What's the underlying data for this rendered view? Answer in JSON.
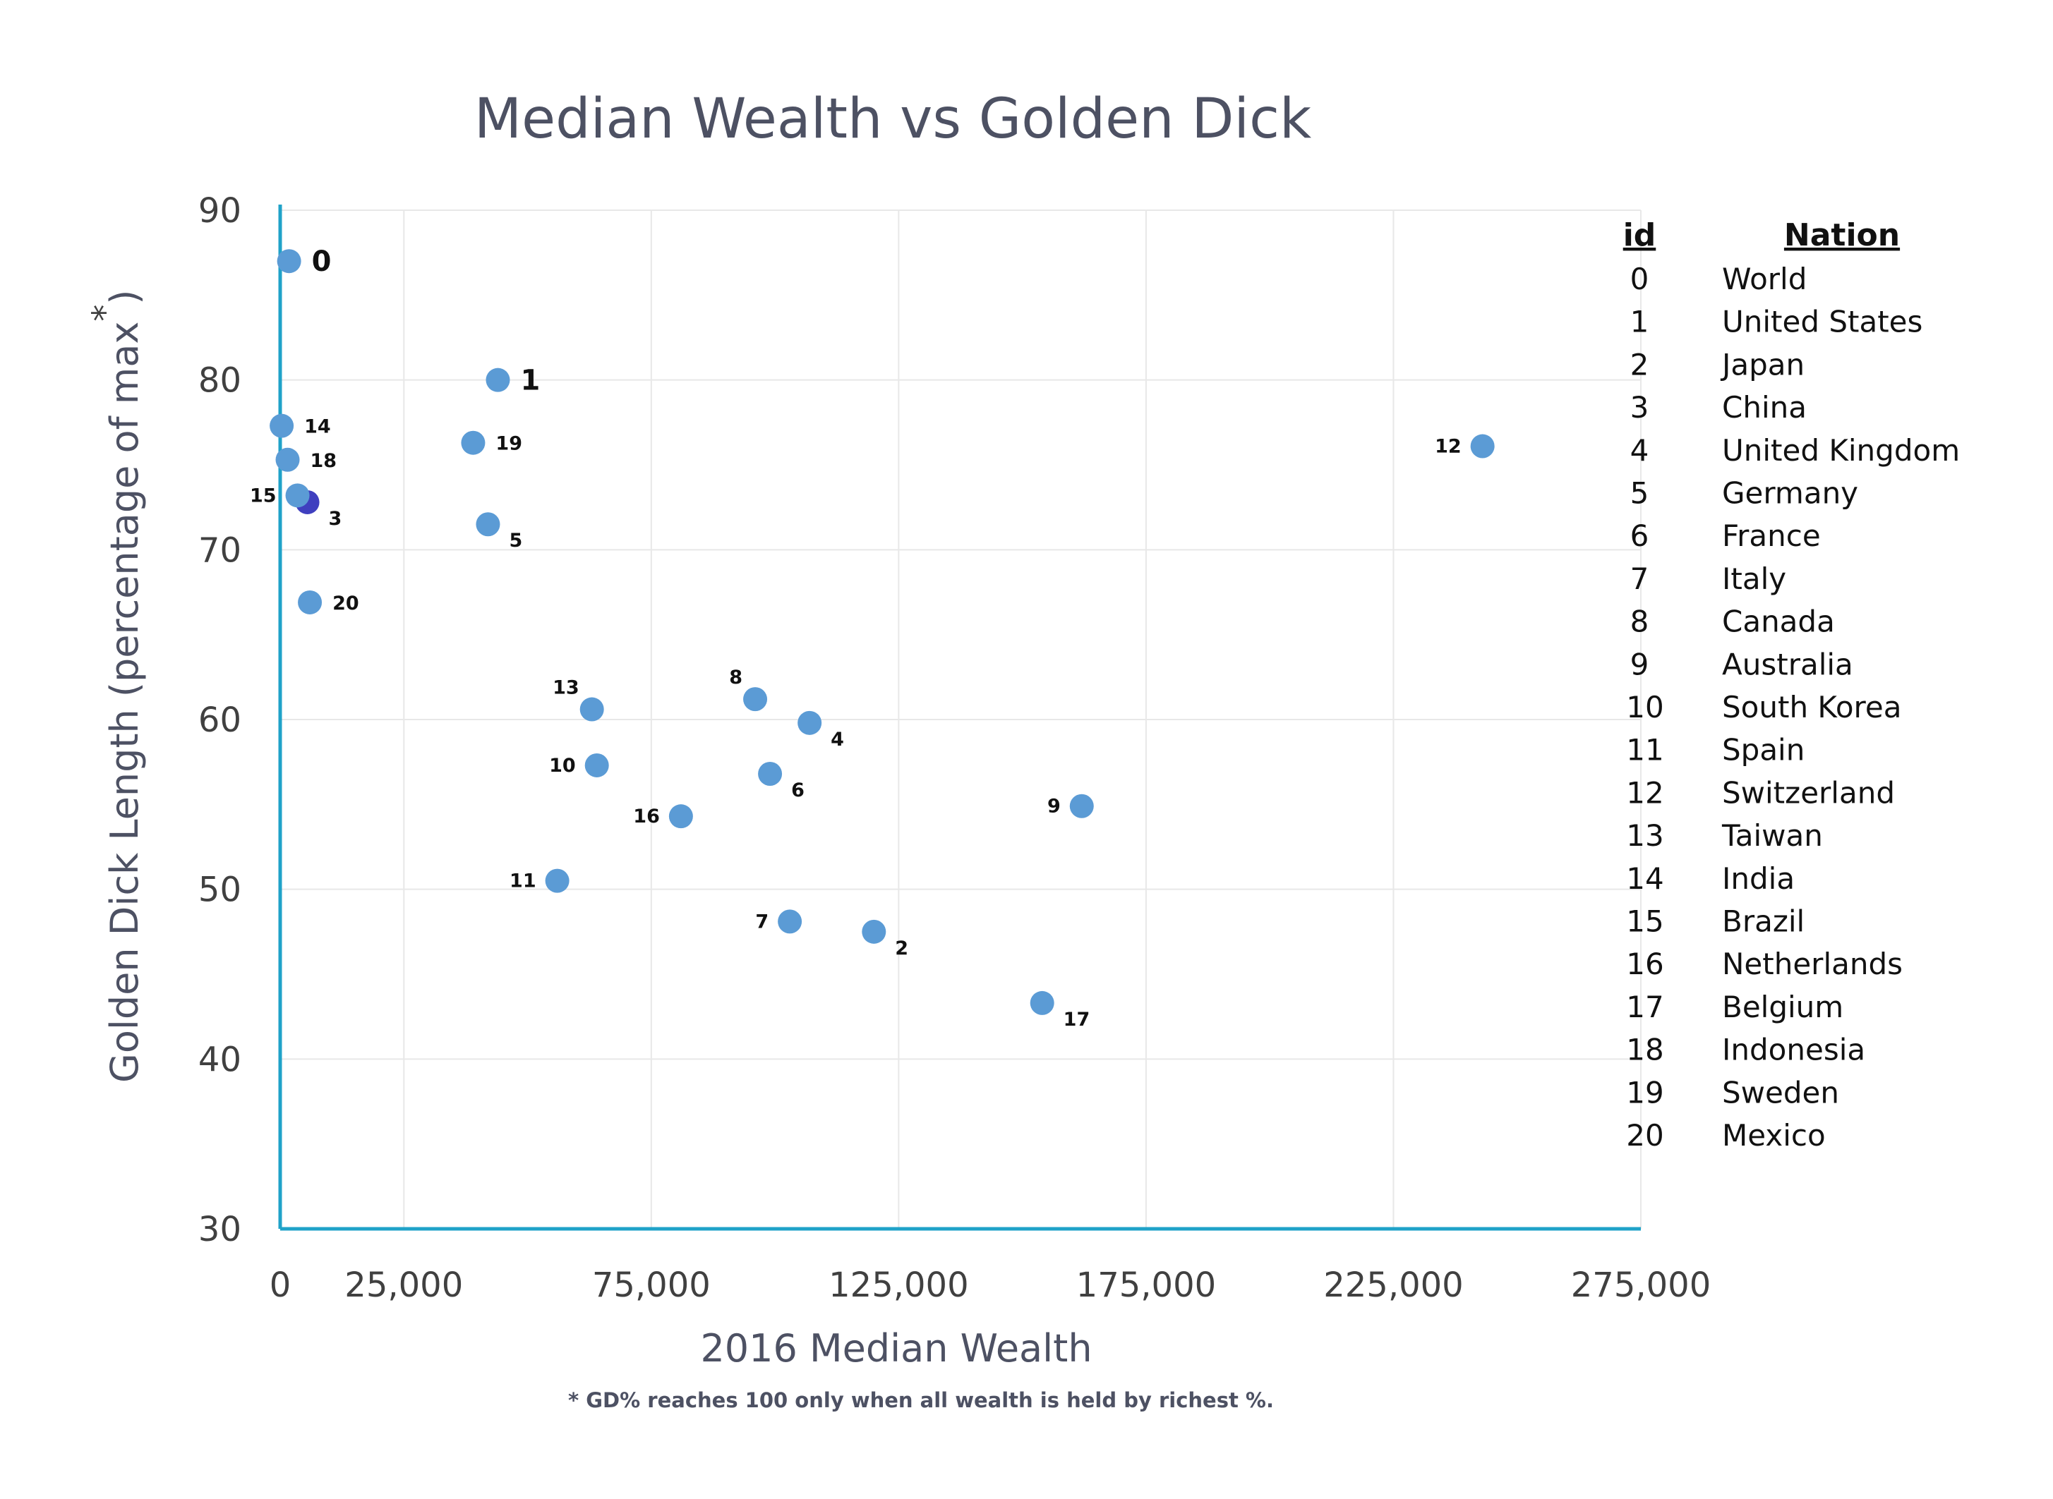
{
  "chart_data": {
    "type": "scatter",
    "title": "Median Wealth vs Golden Dick",
    "xlabel": "2016  Median Wealth",
    "ylabel": "Golden Dick Length (percentage of max",
    "ylabel_mark": "*",
    "ylabel_close": ")",
    "footnote": "* GD% reaches 100 only when all wealth is held by richest %.",
    "xlim": [
      0,
      275000
    ],
    "ylim": [
      30,
      90
    ],
    "x_ticks": [
      0,
      25000,
      75000,
      125000,
      175000,
      225000,
      275000
    ],
    "x_tick_labels": [
      "0",
      "25,000",
      "75,000",
      "125,000",
      "175,000",
      "225,000",
      "275,000"
    ],
    "y_ticks": [
      30,
      40,
      50,
      60,
      70,
      80,
      90
    ],
    "y_tick_labels": [
      "30",
      "40",
      "50",
      "60",
      "70",
      "80",
      "90"
    ],
    "grid": true,
    "colors": {
      "point": "#5b9bd5",
      "highlight": "#3f3fbf",
      "axis": "#1fa2c8",
      "grid": "#e8e8e8"
    },
    "points": [
      {
        "id": "0",
        "x": 1800,
        "y": 87,
        "label_side": "right",
        "big": true
      },
      {
        "id": "1",
        "x": 44000,
        "y": 80,
        "label_side": "right",
        "big": true
      },
      {
        "id": "2",
        "x": 120000,
        "y": 47.5,
        "label_side": "right-below"
      },
      {
        "id": "3",
        "x": 5500,
        "y": 72.8,
        "label_side": "right-below",
        "highlight": true
      },
      {
        "id": "4",
        "x": 107000,
        "y": 59.8,
        "label_side": "right-below"
      },
      {
        "id": "5",
        "x": 42000,
        "y": 71.5,
        "label_side": "right-below"
      },
      {
        "id": "6",
        "x": 99000,
        "y": 56.8,
        "label_side": "right-below"
      },
      {
        "id": "7",
        "x": 103000,
        "y": 48.1,
        "label_side": "left"
      },
      {
        "id": "8",
        "x": 96000,
        "y": 61.2,
        "label_side": "left-above"
      },
      {
        "id": "9",
        "x": 162000,
        "y": 54.9,
        "label_side": "left"
      },
      {
        "id": "10",
        "x": 64000,
        "y": 57.3,
        "label_side": "left"
      },
      {
        "id": "11",
        "x": 56000,
        "y": 50.5,
        "label_side": "left"
      },
      {
        "id": "12",
        "x": 243000,
        "y": 76.1,
        "label_side": "left"
      },
      {
        "id": "13",
        "x": 63000,
        "y": 60.6,
        "label_side": "left-above"
      },
      {
        "id": "14",
        "x": 300,
        "y": 77.3,
        "label_side": "right"
      },
      {
        "id": "15",
        "x": 3500,
        "y": 73.2,
        "label_side": "left"
      },
      {
        "id": "16",
        "x": 81000,
        "y": 54.3,
        "label_side": "left"
      },
      {
        "id": "17",
        "x": 154000,
        "y": 43.3,
        "label_side": "right-below"
      },
      {
        "id": "18",
        "x": 1500,
        "y": 75.3,
        "label_side": "right"
      },
      {
        "id": "19",
        "x": 39000,
        "y": 76.3,
        "label_side": "right"
      },
      {
        "id": "20",
        "x": 6000,
        "y": 66.9,
        "label_side": "right"
      }
    ],
    "legend": {
      "headers": [
        "id",
        "Nation"
      ],
      "rows": [
        [
          "0",
          "World"
        ],
        [
          "1",
          "United States"
        ],
        [
          "2",
          "Japan"
        ],
        [
          "3",
          "China"
        ],
        [
          "4",
          "United Kingdom"
        ],
        [
          "5",
          "Germany"
        ],
        [
          "6",
          "France"
        ],
        [
          "7",
          "Italy"
        ],
        [
          "8",
          "Canada"
        ],
        [
          "9",
          "Australia"
        ],
        [
          "10",
          "South Korea"
        ],
        [
          "11",
          "Spain"
        ],
        [
          "12",
          "Switzerland"
        ],
        [
          "13",
          "Taiwan"
        ],
        [
          "14",
          "India"
        ],
        [
          "15",
          "Brazil"
        ],
        [
          "16",
          "Netherlands"
        ],
        [
          "17",
          "Belgium"
        ],
        [
          "18",
          "Indonesia"
        ],
        [
          "19",
          "Sweden"
        ],
        [
          "20",
          "Mexico"
        ]
      ]
    }
  }
}
